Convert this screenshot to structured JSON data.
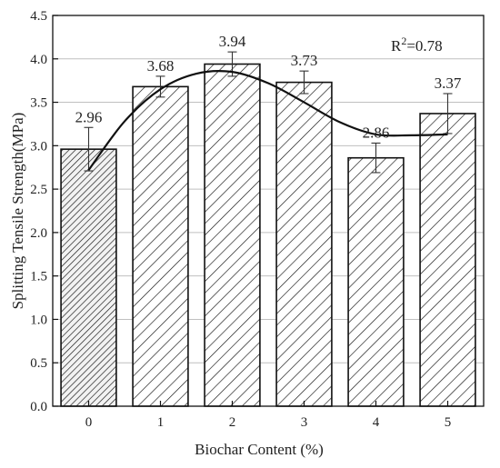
{
  "chart_data": {
    "type": "bar",
    "xlabel": "Biochar Content (%)",
    "ylabel": "Splitting Tensile Strength(MPa)",
    "categories": [
      "0",
      "1",
      "2",
      "3",
      "4",
      "5"
    ],
    "values": [
      2.96,
      3.68,
      3.94,
      3.73,
      2.86,
      3.37
    ],
    "value_labels": [
      "2.96",
      "3.68",
      "3.94",
      "3.73",
      "2.86",
      "3.37"
    ],
    "error": [
      0.25,
      0.12,
      0.14,
      0.13,
      0.17,
      0.23
    ],
    "ylim": [
      0.0,
      4.5
    ],
    "y_ticks": [
      "0.0",
      "0.5",
      "1.0",
      "1.5",
      "2.0",
      "2.5",
      "3.0",
      "3.5",
      "4.0",
      "4.5"
    ],
    "grid": true,
    "bar_fill": "hatched",
    "trendline": {
      "type": "polynomial",
      "points": [
        [
          0,
          2.72
        ],
        [
          0.5,
          3.28
        ],
        [
          1,
          3.65
        ],
        [
          1.5,
          3.83
        ],
        [
          2,
          3.85
        ],
        [
          2.5,
          3.72
        ],
        [
          3,
          3.5
        ],
        [
          3.5,
          3.27
        ],
        [
          4,
          3.13
        ],
        [
          4.5,
          3.12
        ],
        [
          5,
          3.13
        ]
      ],
      "r2_prefix": "R",
      "r2_exp": "2",
      "r2_value": "=0.78"
    },
    "colors": {
      "bar_edge": "#111111",
      "bar_fill_first": "#f2f2f2",
      "grid": "#bfbfbf"
    }
  }
}
